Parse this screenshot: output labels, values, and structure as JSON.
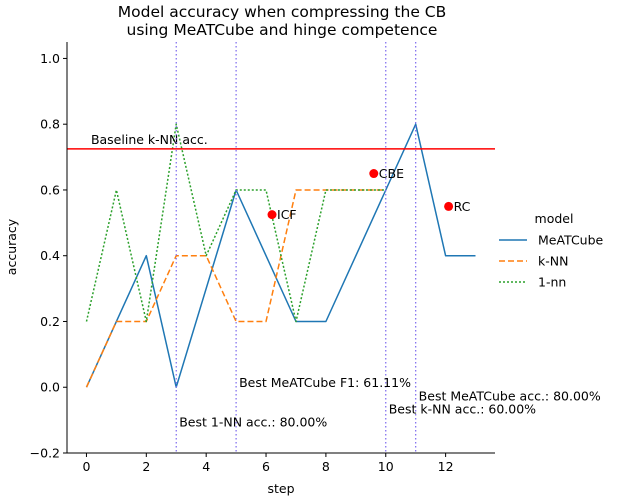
{
  "chart_data": {
    "type": "line",
    "title_lines": [
      "Model accuracy when compressing the CB",
      "using MeATCube and hinge competence"
    ],
    "xlabel": "step",
    "ylabel": "accuracy",
    "xlim": [
      -0.65,
      13.65
    ],
    "ylim": [
      -0.2,
      1.05
    ],
    "xticks": [
      0,
      2,
      4,
      6,
      8,
      10,
      12
    ],
    "yticks": [
      -0.2,
      0.0,
      0.2,
      0.4,
      0.6,
      0.8,
      1.0
    ],
    "xtick_labels": [
      "0",
      "2",
      "4",
      "6",
      "8",
      "10",
      "12"
    ],
    "ytick_labels": [
      "−0.2",
      "0.0",
      "0.2",
      "0.4",
      "0.6",
      "0.8",
      "1.0"
    ],
    "series": [
      {
        "name": "MeATCube",
        "color": "#1f77b4",
        "dash": "solid",
        "points": [
          [
            0,
            0.0
          ],
          [
            2,
            0.4
          ],
          [
            3,
            0.0
          ],
          [
            5,
            0.6
          ],
          [
            7,
            0.2
          ],
          [
            8,
            0.2
          ],
          [
            10,
            0.6
          ],
          [
            11,
            0.8
          ],
          [
            12,
            0.4
          ],
          [
            13,
            0.4
          ]
        ]
      },
      {
        "name": "k-NN",
        "color": "#ff7f0e",
        "dash": "dashed",
        "points": [
          [
            0,
            0.0
          ],
          [
            1,
            0.2
          ],
          [
            2,
            0.2
          ],
          [
            3,
            0.4
          ],
          [
            4,
            0.4
          ],
          [
            5,
            0.2
          ],
          [
            6,
            0.2
          ],
          [
            7,
            0.6
          ],
          [
            10,
            0.6
          ]
        ]
      },
      {
        "name": "1-nn",
        "color": "#2ca02c",
        "dash": "dotted",
        "points": [
          [
            0,
            0.2
          ],
          [
            1,
            0.6
          ],
          [
            2,
            0.2
          ],
          [
            3,
            0.8
          ],
          [
            4,
            0.4
          ],
          [
            5,
            0.6
          ],
          [
            6,
            0.6
          ],
          [
            7,
            0.2
          ],
          [
            8,
            0.6
          ],
          [
            10,
            0.6
          ]
        ]
      }
    ],
    "baseline": {
      "y": 0.725,
      "label": "Baseline k-NN acc.",
      "color": "#ff0000"
    },
    "vlines": {
      "x": [
        3,
        5,
        10,
        11
      ],
      "color": "#7b68ee"
    },
    "markers": [
      {
        "label": "ICF",
        "x": 6.2,
        "y": 0.525
      },
      {
        "label": "CBE",
        "x": 9.6,
        "y": 0.65
      },
      {
        "label": "RC",
        "x": 12.1,
        "y": 0.55
      }
    ],
    "marker_color": "#ff0000",
    "annotations": [
      {
        "text": "Best MeATCube F1: 61.11%",
        "x": 5.1,
        "y": 0.0
      },
      {
        "text": "Best 1-NN acc.: 80.00%",
        "x": 3.1,
        "y": -0.12
      },
      {
        "text": "Best MeATCube acc.: 80.00%",
        "x": 11.1,
        "y": -0.04
      },
      {
        "text": "Best k-NN acc.: 60.00%",
        "x": 10.1,
        "y": -0.08
      }
    ],
    "legend": {
      "title": "model",
      "placement": "right"
    }
  }
}
